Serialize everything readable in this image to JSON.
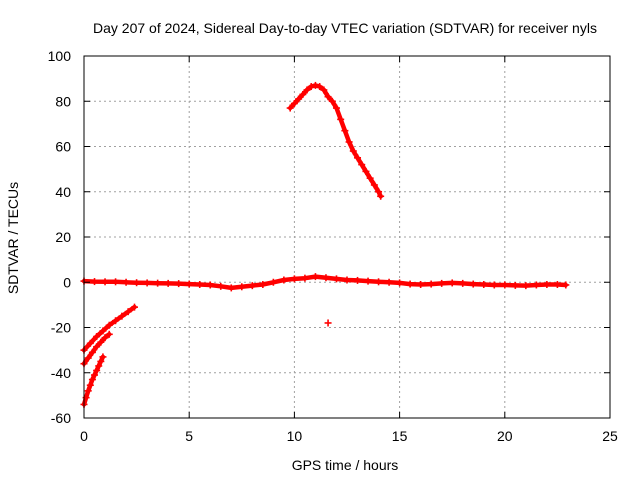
{
  "chart_data": {
    "type": "scatter",
    "title": "Day 207 of 2024, Sidereal Day-to-day VTEC variation (SDTVAR) for receiver nyls",
    "xlabel": "GPS time / hours",
    "ylabel": "SDTVAR / TECUs",
    "xlim": [
      0,
      25
    ],
    "ylim": [
      -60,
      100
    ],
    "xticks": [
      0,
      5,
      10,
      15,
      20,
      25
    ],
    "yticks": [
      -60,
      -40,
      -20,
      0,
      20,
      40,
      60,
      80,
      100
    ],
    "grid": true,
    "marker": "plus",
    "color": "#ff0000",
    "series": [
      {
        "name": "baseline",
        "x": [
          0,
          0.5,
          1,
          1.5,
          2,
          2.5,
          3,
          3.5,
          4,
          4.5,
          5,
          5.5,
          6,
          6.5,
          7,
          7.5,
          8,
          8.5,
          9,
          9.5,
          10,
          10.5,
          11,
          11.5,
          12,
          12.5,
          13,
          13.5,
          14,
          14.5,
          15,
          15.5,
          16,
          16.5,
          17,
          17.5,
          18,
          18.5,
          19,
          19.5,
          20,
          20.5,
          21,
          21.5,
          22,
          22.5,
          22.9
        ],
        "y": [
          0.5,
          0.3,
          0.2,
          0.2,
          0,
          -0.2,
          -0.3,
          -0.4,
          -0.5,
          -0.6,
          -0.8,
          -1,
          -1.2,
          -1.8,
          -2.5,
          -2,
          -1.5,
          -1,
          0,
          1,
          1.5,
          1.8,
          2.5,
          2,
          1.5,
          1,
          0.8,
          0.5,
          0.2,
          0,
          -0.3,
          -0.8,
          -1,
          -0.8,
          -0.5,
          -0.3,
          -0.5,
          -0.8,
          -1,
          -1.2,
          -1.2,
          -1.4,
          -1.5,
          -1.2,
          -1,
          -1,
          -1.2
        ]
      },
      {
        "name": "arc1",
        "x": [
          9.8,
          10,
          10.2,
          10.4,
          10.6,
          10.8,
          11,
          11.2,
          11.4,
          11.6,
          11.8,
          12,
          12.2,
          12.4,
          12.6,
          12.8,
          13,
          13.2,
          13.4,
          13.6,
          13.8,
          14,
          14.1
        ],
        "y": [
          77,
          79,
          81,
          83,
          85,
          86.5,
          87,
          86.5,
          85,
          82,
          80,
          77,
          72,
          67,
          62,
          58,
          55,
          52,
          49,
          46,
          43,
          40,
          38
        ]
      },
      {
        "name": "arc2",
        "x": [
          0,
          0.3,
          0.6,
          0.9,
          1.2,
          1.5,
          1.8,
          2.1,
          2.4
        ],
        "y": [
          -30,
          -27,
          -24,
          -21.5,
          -19,
          -17,
          -15,
          -13,
          -11
        ]
      },
      {
        "name": "arc3",
        "x": [
          0,
          0.2,
          0.4,
          0.6,
          0.8,
          1,
          1.2
        ],
        "y": [
          -36,
          -33.5,
          -31,
          -28.5,
          -26.5,
          -24.5,
          -23
        ]
      },
      {
        "name": "arc4",
        "x": [
          0,
          0.1,
          0.2,
          0.3,
          0.4,
          0.5,
          0.6,
          0.7,
          0.8,
          0.9
        ],
        "y": [
          -54,
          -51,
          -48,
          -45.5,
          -43,
          -41,
          -39,
          -37,
          -35,
          -33
        ]
      },
      {
        "name": "outlier",
        "x": [
          11.6
        ],
        "y": [
          -18
        ]
      }
    ]
  }
}
